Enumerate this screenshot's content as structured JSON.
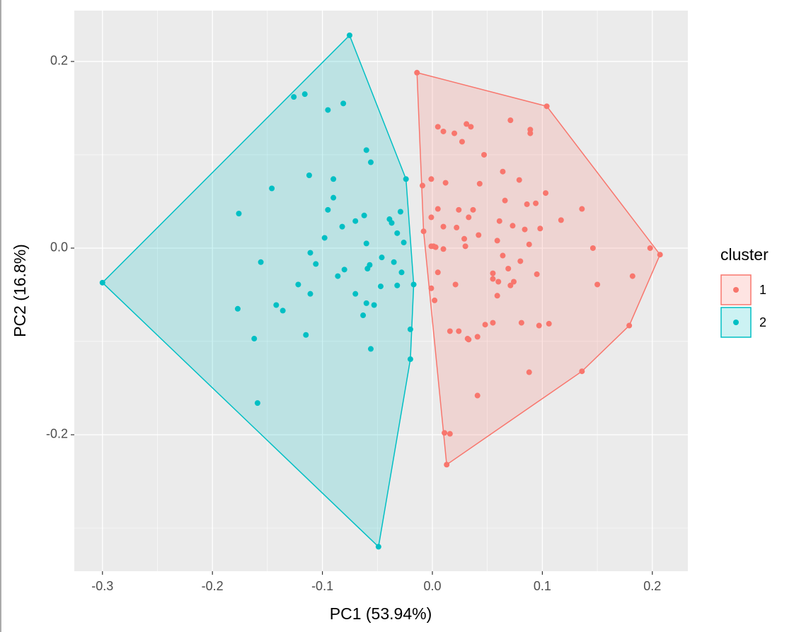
{
  "chart_data": {
    "type": "scatter",
    "xlabel": "PC1 (53.94%)",
    "ylabel": "PC2 (16.8%)",
    "legend_title": "cluster",
    "legend_position": "right",
    "grid": true,
    "hull": true,
    "xlim": [
      -0.3256,
      0.2323
    ],
    "ylim": [
      -0.3462,
      0.2545
    ],
    "xticks": [
      -0.3,
      -0.2,
      -0.1,
      {
        "value": 0,
        "label": "0.0"
      },
      0.1,
      0.2
    ],
    "yticks": [
      -0.2,
      {
        "value": 0,
        "label": "0.0"
      },
      0.2
    ],
    "series": [
      {
        "name": "1",
        "color": "#F8766D",
        "x": [
          -0.014,
          0.104,
          0.207,
          0.198,
          0.182,
          0.179,
          0.136,
          0.013,
          0.011,
          0.016,
          0.041,
          0.088,
          -0.009,
          -0.008,
          -0.001,
          -0.001,
          0.002,
          0.005,
          0.01,
          0.02,
          0.027,
          0.031,
          0.035,
          0.047,
          0.071,
          0.089,
          0.089,
          0.064,
          -0.001,
          0.012,
          0.043,
          0.079,
          0.103,
          0.066,
          0.005,
          0.024,
          0.037,
          0.086,
          0.094,
          0.136,
          -0.001,
          0.033,
          0.061,
          0.117,
          0.01,
          0.022,
          0.073,
          0.084,
          0.098,
          0.042,
          0.029,
          0.059,
          0.001,
          0.003,
          0.01,
          0.03,
          0.088,
          0.146,
          0.064,
          0.08,
          0.069,
          0.055,
          0.005,
          0.095,
          0.055,
          0.06,
          0.071,
          0.074,
          0.021,
          0.059,
          0.15,
          0.055,
          0.081,
          0.097,
          0.106,
          0.016,
          0.024,
          0.032,
          0.033,
          0.041,
          0.048
        ],
        "y": [
          0.188,
          0.152,
          -0.007,
          0.0,
          -0.03,
          -0.083,
          -0.132,
          -0.232,
          -0.198,
          -0.199,
          -0.158,
          -0.133,
          0.067,
          0.018,
          0.002,
          -0.043,
          -0.056,
          0.13,
          0.125,
          0.123,
          0.114,
          0.133,
          0.13,
          0.1,
          0.137,
          0.127,
          0.123,
          0.082,
          0.074,
          0.07,
          0.069,
          0.073,
          0.059,
          0.051,
          0.042,
          0.041,
          0.041,
          0.047,
          0.048,
          0.042,
          0.033,
          0.033,
          0.029,
          0.03,
          0.023,
          0.022,
          0.024,
          0.02,
          0.021,
          0.014,
          0.01,
          0.008,
          0.002,
          0.001,
          -0.001,
          0.002,
          0.004,
          0.0,
          -0.008,
          -0.014,
          -0.022,
          -0.027,
          -0.026,
          -0.028,
          -0.033,
          -0.036,
          -0.04,
          -0.036,
          -0.039,
          -0.051,
          -0.039,
          -0.08,
          -0.08,
          -0.083,
          -0.081,
          -0.089,
          -0.089,
          -0.097,
          -0.098,
          -0.095,
          -0.082
        ]
      },
      {
        "name": "2",
        "color": "#00BFC4",
        "x": [
          -0.0753,
          -0.3,
          -0.049,
          -0.024,
          -0.017,
          -0.02,
          -0.02,
          -0.126,
          -0.116,
          -0.095,
          -0.081,
          -0.06,
          -0.056,
          -0.146,
          -0.112,
          -0.09,
          -0.09,
          -0.095,
          -0.176,
          -0.062,
          -0.07,
          -0.082,
          -0.098,
          -0.039,
          -0.037,
          -0.029,
          -0.032,
          -0.026,
          -0.06,
          -0.111,
          -0.156,
          -0.106,
          -0.057,
          -0.059,
          -0.046,
          -0.035,
          -0.08,
          -0.086,
          -0.028,
          -0.122,
          -0.07,
          -0.111,
          -0.047,
          -0.032,
          -0.06,
          -0.053,
          -0.142,
          -0.136,
          -0.177,
          -0.063,
          -0.115,
          -0.162,
          -0.056,
          -0.159
        ],
        "y": [
          0.228,
          -0.037,
          -0.32,
          0.074,
          -0.039,
          -0.087,
          -0.119,
          0.162,
          0.165,
          0.148,
          0.155,
          0.105,
          0.092,
          0.064,
          0.078,
          0.074,
          0.054,
          0.041,
          0.037,
          0.035,
          0.029,
          0.023,
          0.011,
          0.031,
          0.027,
          0.039,
          0.016,
          0.006,
          0.005,
          -0.005,
          -0.015,
          -0.017,
          -0.018,
          -0.022,
          -0.01,
          -0.015,
          -0.023,
          -0.03,
          -0.026,
          -0.039,
          -0.049,
          -0.049,
          -0.041,
          -0.04,
          -0.059,
          -0.061,
          -0.061,
          -0.067,
          -0.065,
          -0.072,
          -0.093,
          -0.097,
          -0.108,
          -0.166
        ]
      }
    ]
  }
}
